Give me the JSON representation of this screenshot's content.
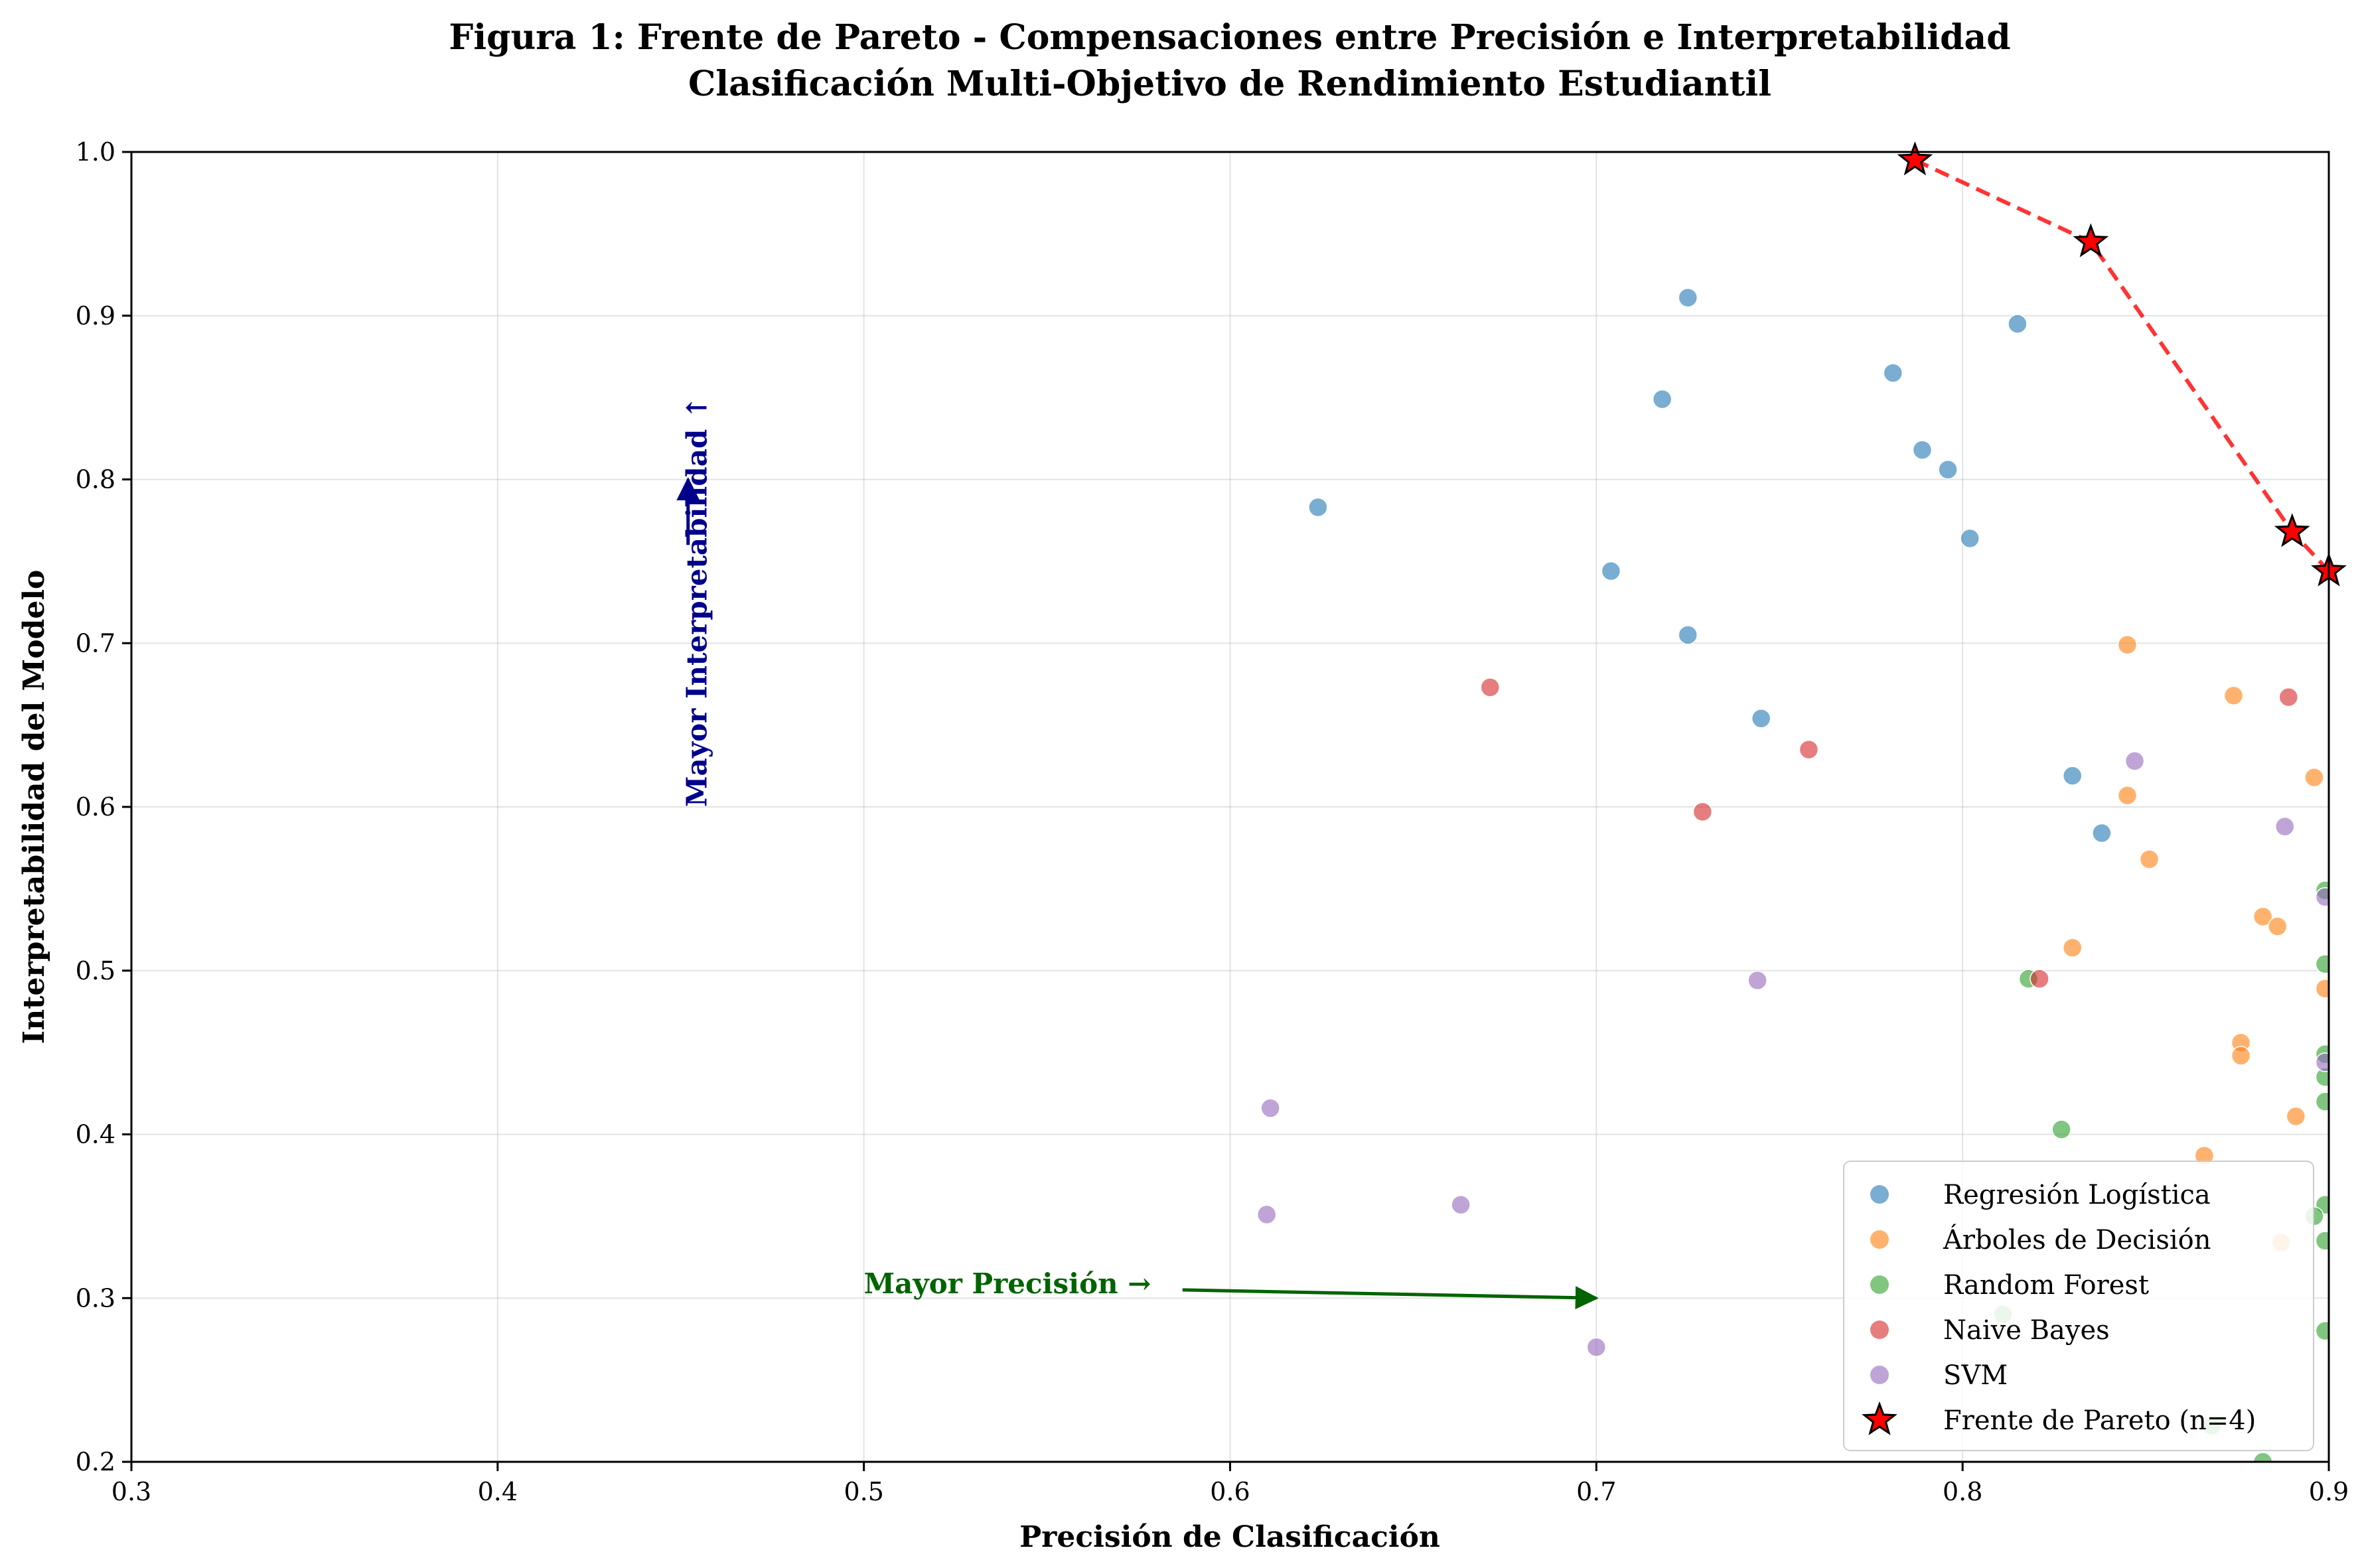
{
  "chart_data": {
    "type": "scatter",
    "title": "Figura 1: Frente de Pareto - Compensaciones entre Precisión e Interpretabilidad",
    "subtitle": "Clasificación Multi-Objetivo de Rendimiento Estudiantil",
    "xlabel": "Precisión de Clasificación",
    "ylabel": "Interpretabilidad del Modelo",
    "xlim": [
      0.3,
      0.9
    ],
    "ylim": [
      0.2,
      1.0
    ],
    "xticks": [
      "0.3",
      "0.4",
      "0.5",
      "0.6",
      "0.7",
      "0.8",
      "0.9"
    ],
    "yticks": [
      "0.2",
      "0.3",
      "0.4",
      "0.5",
      "0.6",
      "0.7",
      "0.8",
      "0.9",
      "1.0"
    ],
    "grid": true,
    "legend_position": "bottom-right",
    "series": [
      {
        "name": "Regresión Logística",
        "color": "#1f77b4",
        "points": [
          [
            0.725,
            0.911
          ],
          [
            0.815,
            0.895
          ],
          [
            0.718,
            0.849
          ],
          [
            0.781,
            0.865
          ],
          [
            0.789,
            0.818
          ],
          [
            0.796,
            0.806
          ],
          [
            0.624,
            0.783
          ],
          [
            0.802,
            0.764
          ],
          [
            0.704,
            0.744
          ],
          [
            0.725,
            0.705
          ],
          [
            0.745,
            0.654
          ],
          [
            0.83,
            0.619
          ],
          [
            0.838,
            0.584
          ]
        ]
      },
      {
        "name": "Árboles de Decisión",
        "color": "#ff7f0e",
        "points": [
          [
            0.845,
            0.699
          ],
          [
            0.874,
            0.668
          ],
          [
            0.896,
            0.618
          ],
          [
            0.845,
            0.607
          ],
          [
            0.851,
            0.568
          ],
          [
            0.882,
            0.533
          ],
          [
            0.886,
            0.527
          ],
          [
            0.83,
            0.514
          ],
          [
            0.899,
            0.489
          ],
          [
            0.876,
            0.456
          ],
          [
            0.876,
            0.448
          ],
          [
            0.891,
            0.411
          ],
          [
            0.866,
            0.387
          ],
          [
            0.887,
            0.334
          ]
        ]
      },
      {
        "name": "Random Forest",
        "color": "#2ca02c",
        "points": [
          [
            0.899,
            0.549
          ],
          [
            0.899,
            0.504
          ],
          [
            0.818,
            0.495
          ],
          [
            0.899,
            0.449
          ],
          [
            0.899,
            0.435
          ],
          [
            0.899,
            0.42
          ],
          [
            0.827,
            0.403
          ],
          [
            0.899,
            0.357
          ],
          [
            0.896,
            0.35
          ],
          [
            0.899,
            0.335
          ],
          [
            0.811,
            0.29
          ],
          [
            0.899,
            0.28
          ],
          [
            0.868,
            0.222
          ],
          [
            0.882,
            0.2
          ]
        ]
      },
      {
        "name": "Naive Bayes",
        "color": "#d62728",
        "points": [
          [
            0.671,
            0.673
          ],
          [
            0.889,
            0.667
          ],
          [
            0.758,
            0.635
          ],
          [
            0.729,
            0.597
          ],
          [
            0.821,
            0.495
          ]
        ]
      },
      {
        "name": "SVM",
        "color": "#9467bd",
        "points": [
          [
            0.847,
            0.628
          ],
          [
            0.888,
            0.588
          ],
          [
            0.899,
            0.545
          ],
          [
            0.744,
            0.494
          ],
          [
            0.899,
            0.444
          ],
          [
            0.611,
            0.416
          ],
          [
            0.663,
            0.357
          ],
          [
            0.61,
            0.351
          ],
          [
            0.7,
            0.27
          ]
        ]
      }
    ],
    "pareto": {
      "name": "Frente de Pareto (n=4)",
      "color": "#ff0000",
      "points": [
        [
          0.787,
          0.995
        ],
        [
          0.835,
          0.945
        ],
        [
          0.89,
          0.768
        ],
        [
          0.9,
          0.744
        ]
      ]
    },
    "annotations": [
      {
        "text": "Mayor Precisión →",
        "color": "#006400",
        "text_at": [
          0.5,
          0.303
        ],
        "arrow_from": [
          0.587,
          0.305
        ],
        "arrow_to": [
          0.7,
          0.3
        ]
      },
      {
        "text": "Mayor Interpretabilidad ↑",
        "color": "#00008b",
        "text_at": [
          0.457,
          0.6
        ],
        "arrow_from": [
          0.452,
          0.76
        ],
        "arrow_to": [
          0.452,
          0.8
        ]
      }
    ]
  }
}
